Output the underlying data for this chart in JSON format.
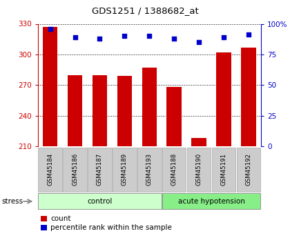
{
  "title": "GDS1251 / 1388682_at",
  "samples": [
    "GSM45184",
    "GSM45186",
    "GSM45187",
    "GSM45189",
    "GSM45193",
    "GSM45188",
    "GSM45190",
    "GSM45191",
    "GSM45192"
  ],
  "counts": [
    327,
    280,
    280,
    279,
    287,
    268,
    218,
    302,
    307
  ],
  "percentiles": [
    96,
    89,
    88,
    90,
    90,
    88,
    85,
    89,
    91
  ],
  "bar_color": "#cc0000",
  "dot_color": "#0000cc",
  "ylim_left": [
    210,
    330
  ],
  "ylim_right": [
    0,
    100
  ],
  "yticks_left": [
    210,
    240,
    270,
    300,
    330
  ],
  "yticks_right": [
    0,
    25,
    50,
    75,
    100
  ],
  "ytick_labels_right": [
    "0",
    "25",
    "50",
    "75",
    "100%"
  ],
  "left_tick_color": "#cc0000",
  "right_tick_color": "#0000cc",
  "tick_bg_color": "#cccccc",
  "group_control_color": "#ccffcc",
  "group_acute_color": "#88ee88",
  "groups_info": [
    {
      "label": "control",
      "start": 0,
      "end": 4
    },
    {
      "label": "acute hypotension",
      "start": 5,
      "end": 8
    }
  ]
}
